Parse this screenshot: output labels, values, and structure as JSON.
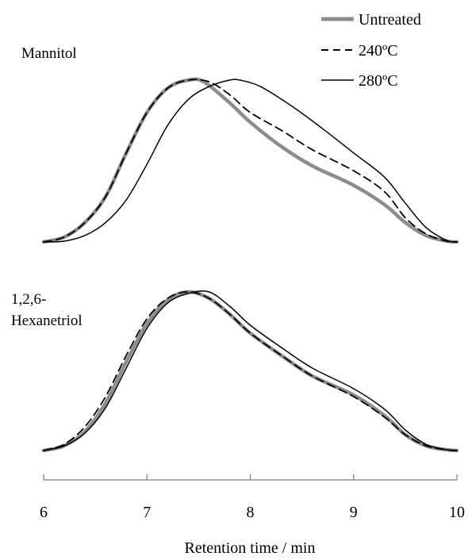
{
  "chart_data": [
    {
      "type": "line",
      "title": "Mannitol",
      "xlabel": "Retention time / min",
      "ylabel": "",
      "xlim": [
        6,
        10
      ],
      "ylim": [
        0,
        1
      ],
      "x_ticks": [
        6,
        7,
        8,
        9,
        10
      ],
      "x_tick_labels": [
        "6",
        "7",
        "8",
        "9",
        "10"
      ],
      "legend": {
        "position": "top-right",
        "entries": [
          "Untreated",
          "240ºC",
          "280ºC"
        ]
      },
      "series": [
        {
          "name": "Untreated",
          "color": "#8c8c8c",
          "style": "solid-thick",
          "x": [
            6.0,
            6.2,
            6.4,
            6.6,
            6.8,
            7.0,
            7.2,
            7.4,
            7.55,
            7.8,
            8.0,
            8.3,
            8.6,
            9.0,
            9.3,
            9.5,
            9.7,
            9.9,
            10.0
          ],
          "y": [
            0.0,
            0.03,
            0.12,
            0.28,
            0.55,
            0.8,
            0.95,
            1.0,
            0.99,
            0.86,
            0.74,
            0.59,
            0.47,
            0.35,
            0.23,
            0.12,
            0.04,
            0.005,
            0.0
          ]
        },
        {
          "name": "240ºC",
          "color": "#000000",
          "style": "dashed",
          "x": [
            6.0,
            6.2,
            6.4,
            6.6,
            6.8,
            7.0,
            7.2,
            7.4,
            7.6,
            7.8,
            8.0,
            8.3,
            8.6,
            9.0,
            9.3,
            9.5,
            9.7,
            9.9,
            10.0
          ],
          "y": [
            0.0,
            0.03,
            0.12,
            0.28,
            0.55,
            0.8,
            0.95,
            1.0,
            0.99,
            0.91,
            0.8,
            0.69,
            0.57,
            0.44,
            0.31,
            0.15,
            0.05,
            0.005,
            0.0
          ]
        },
        {
          "name": "280ºC",
          "color": "#000000",
          "style": "solid-thin",
          "x": [
            6.0,
            6.2,
            6.4,
            6.6,
            6.8,
            7.0,
            7.2,
            7.4,
            7.6,
            7.8,
            7.9,
            8.1,
            8.4,
            8.7,
            9.0,
            9.3,
            9.5,
            9.7,
            9.9,
            10.0
          ],
          "y": [
            0.0,
            0.005,
            0.04,
            0.12,
            0.26,
            0.48,
            0.72,
            0.88,
            0.96,
            1.0,
            1.0,
            0.96,
            0.84,
            0.7,
            0.55,
            0.4,
            0.24,
            0.09,
            0.01,
            0.0
          ]
        }
      ]
    },
    {
      "type": "line",
      "title": "1,2,6- Hexanetriol",
      "title_lines": [
        "1,2,6-",
        "Hexanetriol"
      ],
      "xlabel": "Retention time / min",
      "ylabel": "",
      "xlim": [
        6,
        10
      ],
      "ylim": [
        0,
        1
      ],
      "series": [
        {
          "name": "Untreated",
          "color": "#8c8c8c",
          "style": "solid-thick",
          "x": [
            6.0,
            6.2,
            6.4,
            6.6,
            6.8,
            7.0,
            7.2,
            7.4,
            7.6,
            7.8,
            8.0,
            8.3,
            8.6,
            9.0,
            9.3,
            9.5,
            9.7,
            9.9,
            10.0
          ],
          "y": [
            0.0,
            0.03,
            0.12,
            0.3,
            0.56,
            0.8,
            0.95,
            1.0,
            0.96,
            0.86,
            0.74,
            0.6,
            0.47,
            0.35,
            0.22,
            0.1,
            0.03,
            0.005,
            0.0
          ]
        },
        {
          "name": "240ºC",
          "color": "#000000",
          "style": "dashed",
          "x": [
            6.0,
            6.2,
            6.4,
            6.6,
            6.8,
            7.0,
            7.2,
            7.4,
            7.6,
            7.8,
            8.0,
            8.3,
            8.6,
            9.0,
            9.3,
            9.5,
            9.7,
            9.9,
            10.0
          ],
          "y": [
            0.0,
            0.04,
            0.15,
            0.34,
            0.6,
            0.83,
            0.96,
            1.0,
            0.96,
            0.86,
            0.74,
            0.6,
            0.47,
            0.34,
            0.21,
            0.1,
            0.03,
            0.005,
            0.0
          ]
        },
        {
          "name": "280ºC",
          "color": "#000000",
          "style": "solid-thin",
          "x": [
            6.0,
            6.2,
            6.4,
            6.6,
            6.8,
            7.0,
            7.2,
            7.4,
            7.6,
            7.8,
            8.0,
            8.3,
            8.6,
            9.0,
            9.3,
            9.5,
            9.7,
            9.9,
            10.0
          ],
          "y": [
            0.0,
            0.03,
            0.11,
            0.27,
            0.52,
            0.77,
            0.93,
            0.99,
            1.0,
            0.91,
            0.79,
            0.65,
            0.52,
            0.39,
            0.26,
            0.13,
            0.04,
            0.005,
            0.0
          ]
        }
      ]
    }
  ]
}
